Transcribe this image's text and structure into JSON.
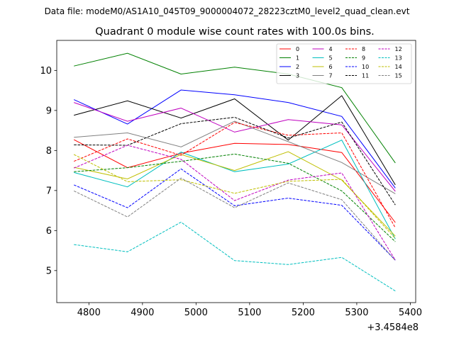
{
  "figure": {
    "suptitle": "Data file: modeM0/AS1A10_045T09_9000004072_28223cztM0_level2_quad_clean.evt"
  },
  "chart_data": {
    "type": "line",
    "title": "Quadrant 0 module wise count rates with 100.0s bins.",
    "xlabel": "",
    "ylabel": "",
    "x_offset_label": "+3.4584e8",
    "x": [
      4772,
      4872,
      4972,
      5072,
      5172,
      5272,
      5372
    ],
    "xlim": [
      4740,
      5410
    ],
    "ylim": [
      4.2,
      10.75
    ],
    "xticks": [
      4800,
      4900,
      5000,
      5100,
      5200,
      5300,
      5400
    ],
    "yticks": [
      5,
      6,
      7,
      8,
      9,
      10
    ],
    "grid": false,
    "legend_position": "top-right",
    "series": [
      {
        "name": "0",
        "color": "#ff0000",
        "dash": "solid",
        "values": [
          8.27,
          7.57,
          7.93,
          8.18,
          8.15,
          7.95,
          6.2
        ]
      },
      {
        "name": "1",
        "color": "#008000",
        "dash": "solid",
        "values": [
          10.11,
          10.43,
          9.91,
          10.08,
          9.91,
          9.57,
          7.69
        ]
      },
      {
        "name": "2",
        "color": "#0000ff",
        "dash": "solid",
        "values": [
          9.27,
          8.66,
          9.51,
          9.39,
          9.2,
          8.85,
          7.06
        ]
      },
      {
        "name": "3",
        "color": "#000000",
        "dash": "solid",
        "values": [
          8.88,
          9.24,
          8.81,
          9.29,
          8.26,
          9.37,
          7.14
        ]
      },
      {
        "name": "4",
        "color": "#bf00bf",
        "dash": "solid",
        "values": [
          9.2,
          8.73,
          9.06,
          8.46,
          8.77,
          8.64,
          6.98
        ]
      },
      {
        "name": "5",
        "color": "#00bfbf",
        "dash": "solid",
        "values": [
          7.45,
          7.09,
          7.96,
          7.47,
          7.66,
          8.26,
          5.79
        ]
      },
      {
        "name": "6",
        "color": "#bfbf00",
        "dash": "solid",
        "values": [
          7.58,
          7.29,
          7.9,
          7.5,
          7.97,
          7.26,
          5.86
        ]
      },
      {
        "name": "7",
        "color": "#808080",
        "dash": "solid",
        "values": [
          8.33,
          8.44,
          8.09,
          8.73,
          8.22,
          7.7,
          6.92
        ]
      },
      {
        "name": "8",
        "color": "#ff0000",
        "dash": "dashed",
        "values": [
          7.73,
          8.29,
          7.88,
          8.7,
          8.38,
          8.44,
          6.07
        ]
      },
      {
        "name": "9",
        "color": "#008000",
        "dash": "dashed",
        "values": [
          7.47,
          7.57,
          7.73,
          7.91,
          7.68,
          6.99,
          5.72
        ]
      },
      {
        "name": "10",
        "color": "#0000ff",
        "dash": "dashed",
        "values": [
          7.14,
          6.57,
          7.54,
          6.62,
          6.81,
          6.63,
          5.26
        ]
      },
      {
        "name": "11",
        "color": "#000000",
        "dash": "dashed",
        "values": [
          8.14,
          8.13,
          8.67,
          8.83,
          8.31,
          8.71,
          6.64
        ]
      },
      {
        "name": "12",
        "color": "#bf00bf",
        "dash": "dashed",
        "values": [
          7.56,
          8.13,
          7.78,
          6.75,
          7.26,
          7.44,
          5.26
        ]
      },
      {
        "name": "13",
        "color": "#00bfbf",
        "dash": "dashed",
        "values": [
          5.65,
          5.47,
          6.21,
          5.25,
          5.15,
          5.33,
          4.49
        ]
      },
      {
        "name": "14",
        "color": "#bfbf00",
        "dash": "dashed",
        "values": [
          7.9,
          7.22,
          7.27,
          6.93,
          7.23,
          7.28,
          5.8
        ]
      },
      {
        "name": "15",
        "color": "#808080",
        "dash": "dashed",
        "values": [
          6.99,
          6.34,
          7.31,
          6.57,
          7.19,
          6.77,
          5.25
        ]
      }
    ]
  }
}
